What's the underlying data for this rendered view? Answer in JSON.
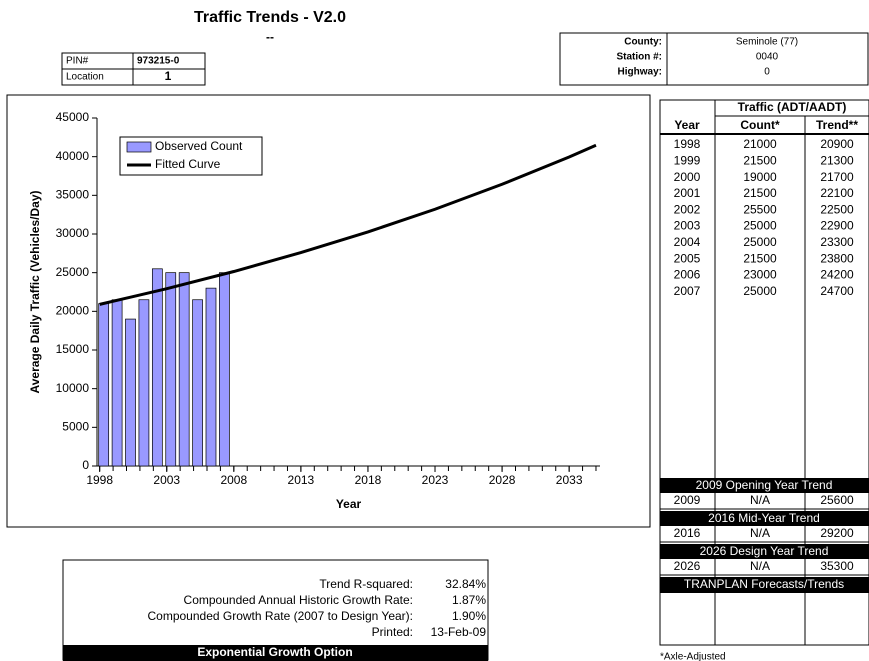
{
  "header": {
    "title": "Traffic Trends - V2.0",
    "subtitle": "--",
    "pin": {
      "label": "PIN#",
      "value": "973215-0"
    },
    "location": {
      "label": "Location",
      "value": "1"
    },
    "site": [
      {
        "label": "County:",
        "value": "Seminole (77)"
      },
      {
        "label": "Station #:",
        "value": "0040"
      },
      {
        "label": "Highway:",
        "value": "0"
      }
    ]
  },
  "chart_data": {
    "type": "bar",
    "x_label": "Year",
    "y_label": "Average Daily Traffic (Vehicles/Day)",
    "xlim": [
      1997.8,
      2035.3
    ],
    "xticks": [
      1998,
      2003,
      2008,
      2013,
      2018,
      2023,
      2028,
      2033
    ],
    "xminor_step": 1,
    "ylim": [
      0,
      45000
    ],
    "yticks": [
      0,
      5000,
      10000,
      15000,
      20000,
      25000,
      30000,
      35000,
      40000,
      45000
    ],
    "legend": "top-left",
    "series": [
      {
        "name": "Observed Count",
        "type": "bar",
        "color": "#9999ff",
        "x": [
          1998,
          1999,
          2000,
          2001,
          2002,
          2003,
          2004,
          2005,
          2006,
          2007
        ],
        "values": [
          21000,
          21500,
          19000,
          21500,
          25500,
          25000,
          25000,
          21500,
          23000,
          25000
        ]
      },
      {
        "name": "Fitted Curve",
        "type": "line",
        "color": "#000000",
        "x": [
          1998,
          2003,
          2008,
          2013,
          2018,
          2023,
          2028,
          2033,
          2035
        ],
        "values": [
          20900,
          22930,
          25150,
          27600,
          30270,
          33200,
          36430,
          39960,
          41470
        ]
      }
    ]
  },
  "table": {
    "group": "Traffic (ADT/AADT)",
    "columns": [
      "Year",
      "Count*",
      "Trend**"
    ],
    "rows": [
      [
        1998,
        21000,
        20900
      ],
      [
        1999,
        21500,
        21300
      ],
      [
        2000,
        19000,
        21700
      ],
      [
        2001,
        21500,
        22100
      ],
      [
        2002,
        25500,
        22500
      ],
      [
        2003,
        25000,
        22900
      ],
      [
        2004,
        25000,
        23300
      ],
      [
        2005,
        21500,
        23800
      ],
      [
        2006,
        23000,
        24200
      ],
      [
        2007,
        25000,
        24700
      ]
    ],
    "sections": [
      {
        "title": "2009 Opening Year Trend",
        "row": [
          2009,
          "N/A",
          25600
        ]
      },
      {
        "title": "2016 Mid-Year Trend",
        "row": [
          2016,
          "N/A",
          29200
        ]
      },
      {
        "title": "2026 Design Year Trend",
        "row": [
          2026,
          "N/A",
          35300
        ]
      }
    ],
    "forecasts": "TRANPLAN Forecasts/Trends",
    "footnote": "*Axle-Adjusted"
  },
  "stats": {
    "items": [
      {
        "label": "Trend R-squared:",
        "value": "32.84%"
      },
      {
        "label": "Compounded Annual Historic Growth Rate:",
        "value": "1.87%"
      },
      {
        "label": "Compounded Growth Rate (2007 to Design Year):",
        "value": "1.90%"
      },
      {
        "label": "Printed:",
        "value": "13-Feb-09"
      }
    ],
    "option": "Exponential Growth Option"
  }
}
